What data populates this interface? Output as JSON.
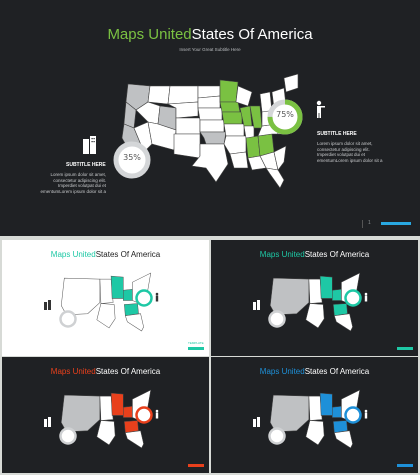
{
  "main": {
    "title_accent": "Maps United",
    "title_rest": "States Of America",
    "subtitle": "Insert Your Great Subtitle Here",
    "right_percent": "75%",
    "left_percent": "35%",
    "right_subhead": "SUBTITLE HERE",
    "left_subhead": "SUBTITLE HERE",
    "right_text": "Lorem ipsum dolor sit amet, consectetur adipiscing elit. Imperdiet volutpat dui et ementumLorem ipsum dolor sit a",
    "left_text": "Lorem ipsum dolor sit amet, consectetur adipiscing elit. Imperdiet volutpat dui et ementumLorem ipsum dolor sit a",
    "page_number": "1"
  },
  "thumbs": [
    {
      "title_accent": "Maps United",
      "title_rest": "States Of America",
      "badge": "TEMPLATE",
      "accent": "#1ec8a5",
      "bg": "white"
    },
    {
      "title_accent": "Maps United",
      "title_rest": "States Of America",
      "accent": "#1ec8a5",
      "bg": "dark"
    },
    {
      "title_accent": "Maps United",
      "title_rest": "States Of America",
      "accent": "#e8401c",
      "bg": "dark"
    },
    {
      "title_accent": "Maps United",
      "title_rest": "States Of America",
      "accent": "#1e90d8",
      "bg": "dark"
    }
  ],
  "colors": {
    "main_accent": "#7ac142",
    "map_fill": "#ffffff",
    "map_grey": "#bfc1c3",
    "bg_dark": "#1f2124",
    "footer_blue": "#29a8e0"
  }
}
